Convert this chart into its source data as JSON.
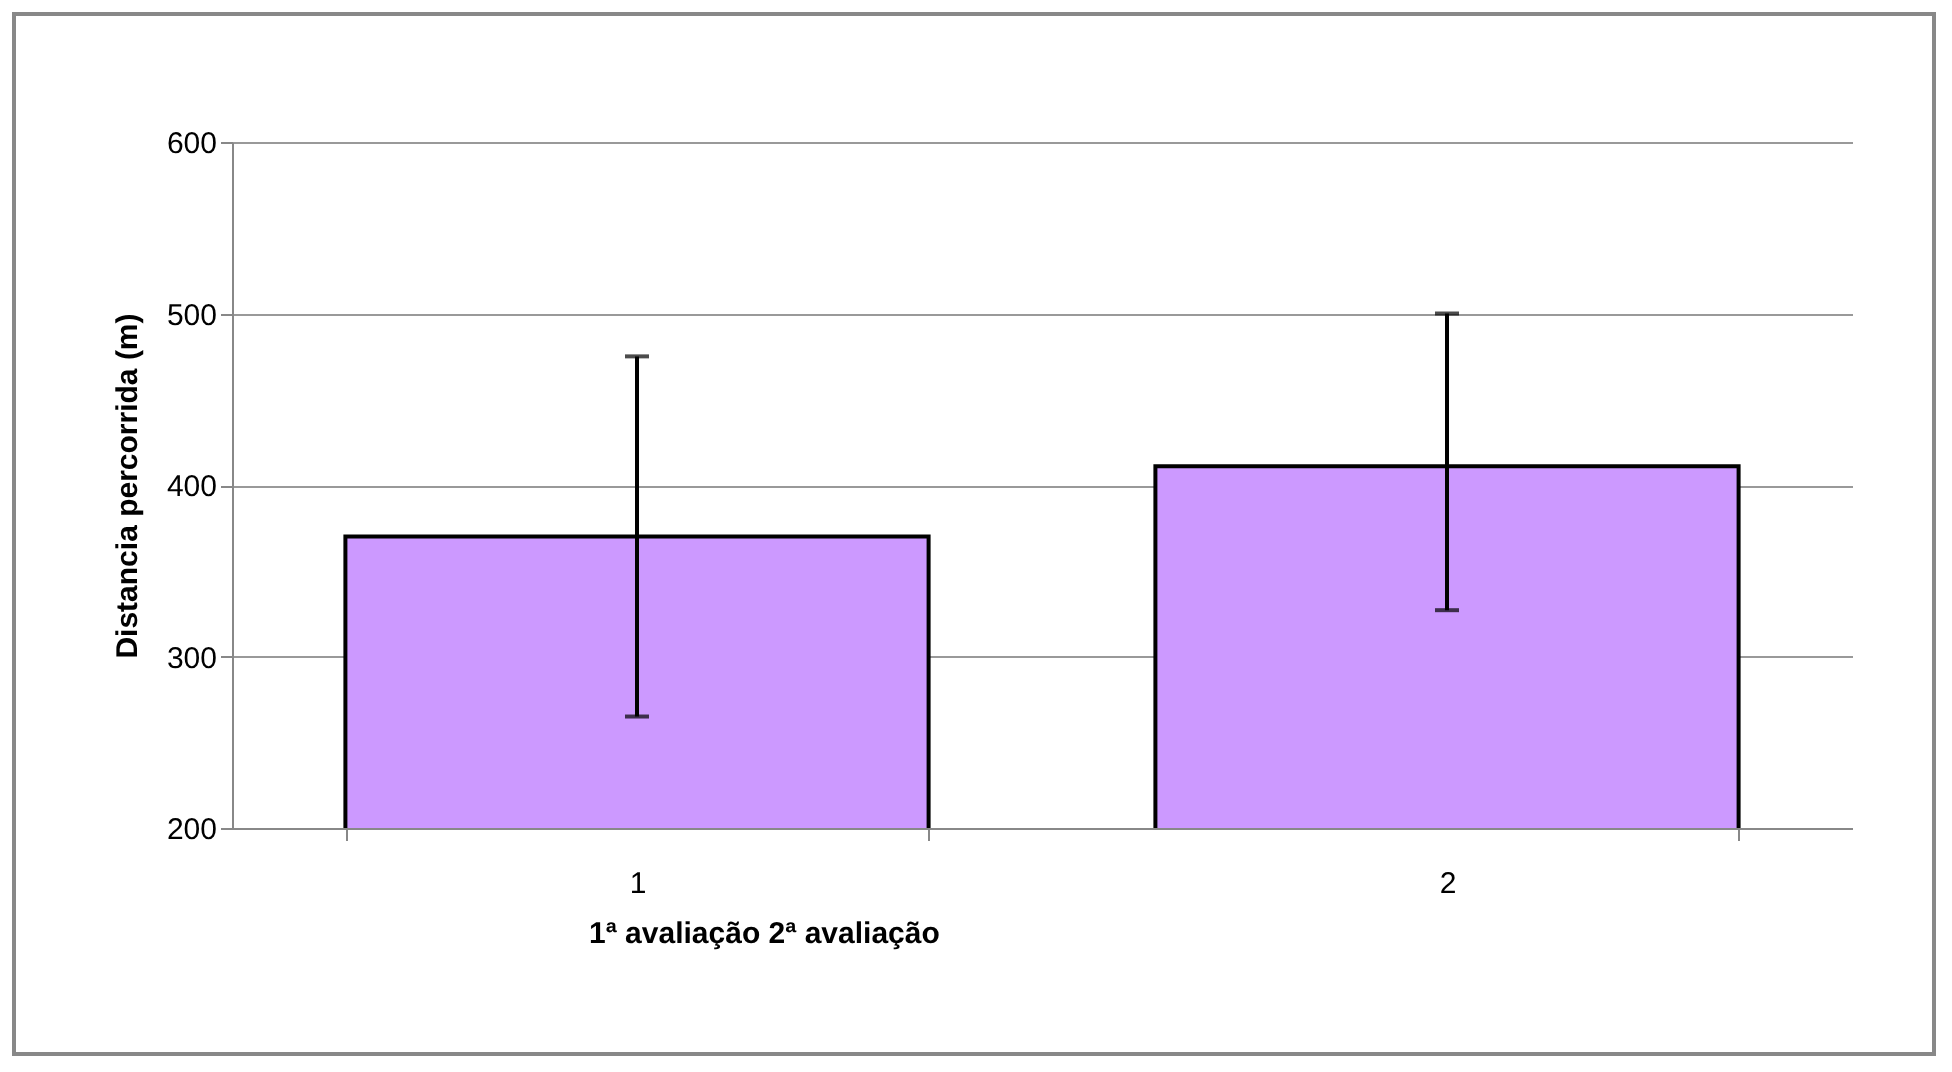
{
  "chart_data": {
    "type": "bar",
    "ylabel": "Distancia percorrida (m)",
    "xlabel": "1ª avaliação      2ª avaliação",
    "categories": [
      "1",
      "2"
    ],
    "series": [
      {
        "color": "#cc99ff",
        "values": [
          370,
          411
        ],
        "errors": [
          105,
          [
            327,
            500
          ]
        ]
      }
    ],
    "ylim": [
      200,
      600
    ],
    "yticks": [
      200,
      300,
      400,
      500,
      600
    ],
    "grid": "y",
    "legend": false
  }
}
